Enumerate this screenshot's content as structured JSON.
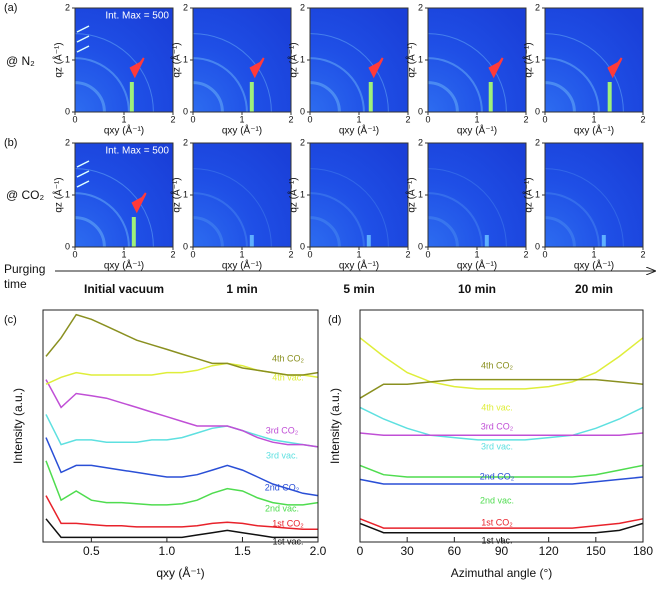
{
  "panel_labels": [
    "(a)",
    "(b)",
    "(c)",
    "(d)"
  ],
  "row_labels": [
    "@ N₂",
    "@ CO₂"
  ],
  "int_max": "Int. Max = 500",
  "image_axes": {
    "xlabel": "qxy (Å⁻¹)",
    "ylabel": "qz (Å⁻¹)",
    "xlim": [
      0,
      2
    ],
    "ylim": [
      0,
      2
    ],
    "xticks": [
      0,
      1,
      2
    ],
    "yticks": [
      0,
      1,
      2
    ]
  },
  "time_axis": {
    "label": "Purging time",
    "times": [
      "Initial vacuum",
      "1 min",
      "5 min",
      "10 min",
      "20 min"
    ]
  },
  "chart_data": [
    {
      "type": "line",
      "xlabel": "qxy (Å⁻¹)",
      "ylabel": "Intensity (a.u.)",
      "xlim": [
        0.18,
        2.0
      ],
      "ylim": [
        0,
        100
      ],
      "xticks": [
        0.5,
        {
          "value": 1,
          "label": "1.0"
        },
        1.5,
        {
          "value": 2,
          "label": "2.0"
        }
      ],
      "x": [
        0.2,
        0.3,
        0.4,
        0.5,
        0.6,
        0.7,
        0.8,
        0.9,
        1.0,
        1.1,
        1.2,
        1.3,
        1.4,
        1.5,
        1.6,
        1.7,
        1.8,
        1.9,
        2.0
      ],
      "series": [
        {
          "name": "1st vac.",
          "color": "#111111",
          "values": [
            10,
            2,
            2,
            2,
            2,
            2,
            2,
            2,
            2,
            2,
            3,
            4,
            5,
            4,
            3,
            2,
            2,
            2,
            2
          ]
        },
        {
          "name": "1st CO₂",
          "color": "#e8222b",
          "values": [
            20,
            8,
            8,
            7.5,
            7,
            7,
            6.5,
            6.5,
            6.5,
            6.5,
            7,
            8,
            8.5,
            8,
            7,
            6.5,
            6,
            5.5,
            5.5
          ]
        },
        {
          "name": "2nd vac.",
          "color": "#4fdc4f",
          "values": [
            35,
            18,
            22,
            18,
            17,
            17,
            16.5,
            16,
            16,
            16.5,
            18,
            21,
            23,
            22,
            19,
            17,
            16,
            16,
            17
          ]
        },
        {
          "name": "2nd CO₂",
          "color": "#2a4fd6",
          "values": [
            45,
            30,
            33,
            33,
            32,
            31,
            30,
            29,
            28,
            28,
            29,
            31,
            33,
            31,
            28,
            25,
            23,
            21,
            20
          ]
        },
        {
          "name": "3rd vac.",
          "color": "#5ee0e0",
          "values": [
            55,
            42,
            44,
            44,
            43,
            43,
            43,
            44,
            44,
            45,
            47,
            49,
            50,
            48,
            46,
            44,
            43,
            42,
            41
          ]
        },
        {
          "name": "3rd CO₂",
          "color": "#c04fd6",
          "values": [
            70,
            58,
            64,
            63,
            62,
            60,
            58,
            56,
            54,
            52,
            50,
            50,
            50,
            48,
            45,
            43,
            42,
            42,
            41
          ]
        },
        {
          "name": "4th vac.",
          "color": "#dfee3a",
          "values": [
            68,
            71,
            73,
            72,
            72,
            72,
            72,
            72,
            73,
            73,
            74,
            76,
            77,
            76,
            74,
            73,
            72,
            72,
            71
          ]
        },
        {
          "name": "4th CO₂",
          "color": "#8a9020",
          "values": [
            80,
            88,
            98,
            96,
            93,
            90,
            87,
            85,
            83,
            81,
            79,
            77,
            77,
            75,
            74,
            73,
            72,
            72,
            73
          ]
        }
      ]
    },
    {
      "type": "line",
      "xlabel": "Azimuthal angle (°)",
      "ylabel": "Intensity (a.u.)",
      "xlim": [
        0,
        180
      ],
      "ylim": [
        0,
        100
      ],
      "xticks": [
        0,
        30,
        60,
        90,
        120,
        150,
        180
      ],
      "x": [
        0,
        15,
        30,
        45,
        60,
        75,
        90,
        105,
        120,
        135,
        150,
        165,
        180
      ],
      "series": [
        {
          "name": "1st vac.",
          "color": "#111111",
          "values": [
            8,
            4,
            4,
            4,
            4,
            4,
            4,
            4,
            4,
            4,
            4,
            5,
            8
          ]
        },
        {
          "name": "1st CO₂",
          "color": "#e8222b",
          "values": [
            10,
            6,
            6,
            6,
            6,
            6,
            6,
            6,
            6,
            6,
            7,
            8,
            10
          ]
        },
        {
          "name": "2nd vac.",
          "color": "#4fdc4f",
          "values": [
            33,
            29,
            28,
            28,
            28,
            28,
            28,
            28,
            28,
            28,
            29,
            31,
            33
          ]
        },
        {
          "name": "2nd CO₂",
          "color": "#2a4fd6",
          "values": [
            27,
            25,
            25,
            25,
            25,
            25,
            25,
            25,
            25,
            25,
            26,
            27,
            28
          ]
        },
        {
          "name": "3rd vac.",
          "color": "#5ee0e0",
          "values": [
            58,
            53,
            49,
            46,
            45,
            44,
            44,
            44,
            45,
            46,
            49,
            53,
            58
          ]
        },
        {
          "name": "3rd CO₂",
          "color": "#c04fd6",
          "values": [
            47,
            46,
            46,
            46,
            46,
            46,
            46,
            46,
            46,
            46,
            46,
            46,
            47
          ]
        },
        {
          "name": "4th vac.",
          "color": "#dfee3a",
          "values": [
            88,
            80,
            73,
            69,
            67,
            66,
            66,
            66,
            67,
            69,
            73,
            80,
            88
          ]
        },
        {
          "name": "4th CO₂",
          "color": "#8a9020",
          "values": [
            62,
            68,
            68,
            69,
            70,
            70,
            70,
            70,
            70,
            70,
            70,
            69,
            68
          ]
        }
      ]
    }
  ]
}
